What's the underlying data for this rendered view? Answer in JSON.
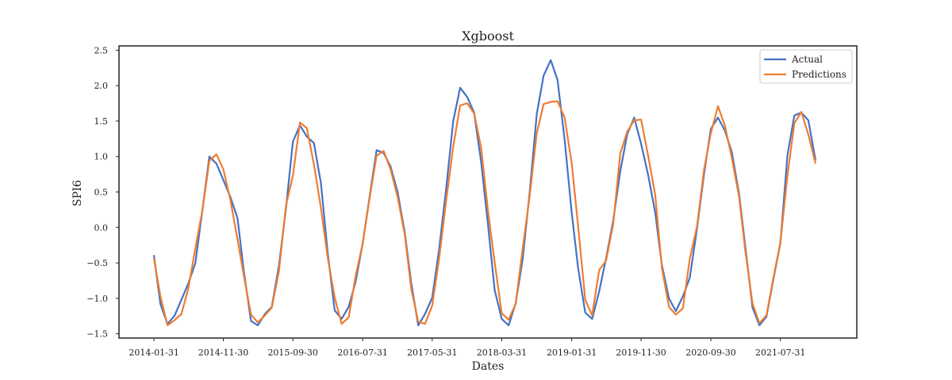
{
  "chart_data": {
    "type": "line",
    "title": "Xgboost",
    "xlabel": "Dates",
    "ylabel": "SPI6",
    "ylim": [
      -1.56,
      2.56
    ],
    "yticks": [
      -1.5,
      -1.0,
      -0.5,
      0.0,
      0.5,
      1.0,
      1.5,
      2.0,
      2.5
    ],
    "ytick_labels": [
      "−1.5",
      "−1.0",
      "−0.5",
      "0.0",
      "0.5",
      "1.0",
      "1.5",
      "2.0",
      "2.5"
    ],
    "x_start": "2014-01-31",
    "x_end": "2021-12-31",
    "xlim": [
      "2013-08-31",
      "2022-06-30"
    ],
    "xtick_labels": [
      "2014-01-31",
      "2014-11-30",
      "2015-09-30",
      "2016-07-31",
      "2017-05-31",
      "2018-03-31",
      "2019-01-31",
      "2019-11-30",
      "2020-09-30",
      "2021-07-31"
    ],
    "grid": false,
    "legend_position": "top-right",
    "series": [
      {
        "name": "Actual",
        "color": "#4472c4",
        "values": [
          -0.4,
          -1.08,
          -1.36,
          -1.25,
          -1.02,
          -0.79,
          -0.5,
          0.26,
          1.0,
          0.9,
          0.67,
          0.43,
          0.13,
          -0.63,
          -1.32,
          -1.38,
          -1.22,
          -1.12,
          -0.54,
          0.27,
          1.21,
          1.44,
          1.28,
          1.19,
          0.62,
          -0.35,
          -1.17,
          -1.29,
          -1.12,
          -0.77,
          -0.23,
          0.45,
          1.09,
          1.05,
          0.86,
          0.5,
          -0.07,
          -0.78,
          -1.38,
          -1.22,
          -0.99,
          -0.32,
          0.55,
          1.5,
          1.97,
          1.84,
          1.62,
          0.92,
          0.01,
          -0.88,
          -1.29,
          -1.38,
          -1.07,
          -0.46,
          0.49,
          1.6,
          2.14,
          2.36,
          2.08,
          1.24,
          0.2,
          -0.58,
          -1.2,
          -1.29,
          -0.9,
          -0.44,
          0.09,
          0.79,
          1.31,
          1.55,
          1.18,
          0.74,
          0.21,
          -0.53,
          -1.0,
          -1.18,
          -0.97,
          -0.71,
          -0.03,
          0.75,
          1.39,
          1.55,
          1.37,
          1.06,
          0.48,
          -0.28,
          -1.13,
          -1.38,
          -1.26,
          -0.74,
          -0.22,
          1.02,
          1.58,
          1.62,
          1.51,
          0.96
        ]
      },
      {
        "name": "Predictions",
        "color": "#ed7d31",
        "values": [
          -0.44,
          -0.97,
          -1.38,
          -1.31,
          -1.22,
          -0.86,
          -0.29,
          0.25,
          0.94,
          1.03,
          0.82,
          0.39,
          -0.17,
          -0.69,
          -1.23,
          -1.34,
          -1.24,
          -1.13,
          -0.62,
          0.31,
          0.73,
          1.48,
          1.4,
          0.89,
          0.27,
          -0.42,
          -0.99,
          -1.36,
          -1.27,
          -0.69,
          -0.23,
          0.43,
          1.01,
          1.08,
          0.82,
          0.43,
          -0.1,
          -0.86,
          -1.33,
          -1.36,
          -1.1,
          -0.45,
          0.38,
          1.14,
          1.72,
          1.75,
          1.61,
          1.12,
          0.21,
          -0.49,
          -1.21,
          -1.3,
          -1.08,
          -0.31,
          0.44,
          1.33,
          1.74,
          1.77,
          1.78,
          1.55,
          0.9,
          0.01,
          -1.02,
          -1.24,
          -0.6,
          -0.47,
          0.04,
          1.04,
          1.35,
          1.51,
          1.52,
          1.01,
          0.46,
          -0.57,
          -1.12,
          -1.23,
          -1.14,
          -0.44,
          0.0,
          0.81,
          1.33,
          1.71,
          1.44,
          0.98,
          0.44,
          -0.34,
          -1.07,
          -1.35,
          -1.24,
          -0.72,
          -0.21,
          0.73,
          1.47,
          1.63,
          1.31,
          0.91
        ]
      }
    ]
  }
}
